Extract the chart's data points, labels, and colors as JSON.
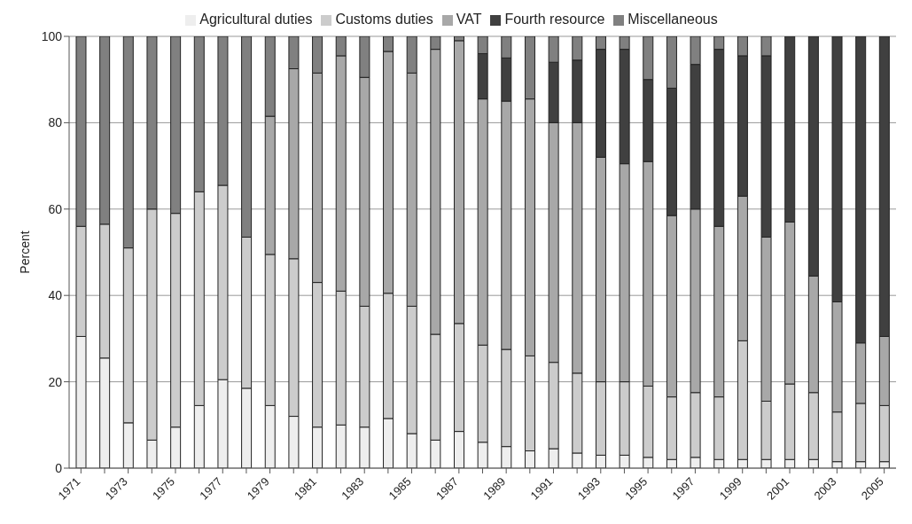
{
  "chart_data": {
    "type": "bar",
    "stacked": true,
    "ylabel": "Percent",
    "ylim": [
      0,
      100
    ],
    "yticks": [
      0,
      20,
      40,
      60,
      80,
      100
    ],
    "grid": "y",
    "legend": "top",
    "categories": [
      "1971",
      null,
      "1973",
      null,
      "1975",
      null,
      "1977",
      null,
      "1979",
      null,
      "1981",
      null,
      "1983",
      null,
      "1985",
      null,
      "1987",
      null,
      "1989",
      null,
      "1991",
      null,
      "1993",
      null,
      "1995",
      null,
      "1997",
      null,
      "1999",
      null,
      "2001",
      null,
      "2003",
      null,
      "2005"
    ],
    "series": [
      {
        "name": "Agricultural duties",
        "color": "#eeeeee",
        "values": [
          30.5,
          25.5,
          10.5,
          6.5,
          9.5,
          14.5,
          20.5,
          18.5,
          14.5,
          12,
          9.5,
          10,
          9.5,
          11.5,
          8,
          6.5,
          8.5,
          6,
          5,
          4,
          4.5,
          3.5,
          3,
          3,
          2.5,
          2,
          2.5,
          2,
          2,
          2,
          2,
          2,
          1.5,
          1.5,
          1.5
        ]
      },
      {
        "name": "Customs duties",
        "color": "#cccccc",
        "values": [
          25.5,
          31,
          40.5,
          53.5,
          49.5,
          49.5,
          45,
          35,
          35,
          36.5,
          33.5,
          31,
          28,
          29,
          29.5,
          24.5,
          25,
          22.5,
          22.5,
          22,
          20,
          18.5,
          17,
          17,
          16.5,
          14.5,
          15,
          14.5,
          27.5,
          13.5,
          17.5,
          15.5,
          11.5,
          13.5,
          13
        ]
      },
      {
        "name": "VAT",
        "color": "#a8a8a8",
        "values": [
          0,
          0,
          0,
          0,
          0,
          0,
          0,
          0,
          32,
          44,
          48.5,
          54.5,
          53,
          56,
          54,
          66,
          65.5,
          57,
          57.5,
          59.5,
          55.5,
          58,
          52,
          50.5,
          52,
          42,
          42.5,
          39.5,
          33.5,
          38,
          37.5,
          27,
          25.5,
          14,
          16
        ]
      },
      {
        "name": "Fourth resource",
        "color": "#404040",
        "values": [
          0,
          0,
          0,
          0,
          0,
          0,
          0,
          0,
          0,
          0,
          0,
          0,
          0,
          0,
          0,
          0,
          0,
          10.5,
          10,
          0,
          14,
          14.5,
          25,
          26.5,
          19,
          29.5,
          33.5,
          41,
          32.5,
          42,
          43,
          55.5,
          61.5,
          71,
          69.5
        ]
      },
      {
        "name": "Miscellaneous",
        "color": "#808080",
        "values": [
          44,
          43.5,
          49,
          40,
          41,
          36,
          34.5,
          46.5,
          18.5,
          7.5,
          8.5,
          4.5,
          9.5,
          3.5,
          8.5,
          3,
          1,
          4,
          5,
          14.5,
          6,
          5.5,
          3,
          3,
          10,
          12,
          6.5,
          3,
          4.5,
          4.5,
          0,
          0,
          0,
          0,
          0
        ]
      }
    ]
  }
}
